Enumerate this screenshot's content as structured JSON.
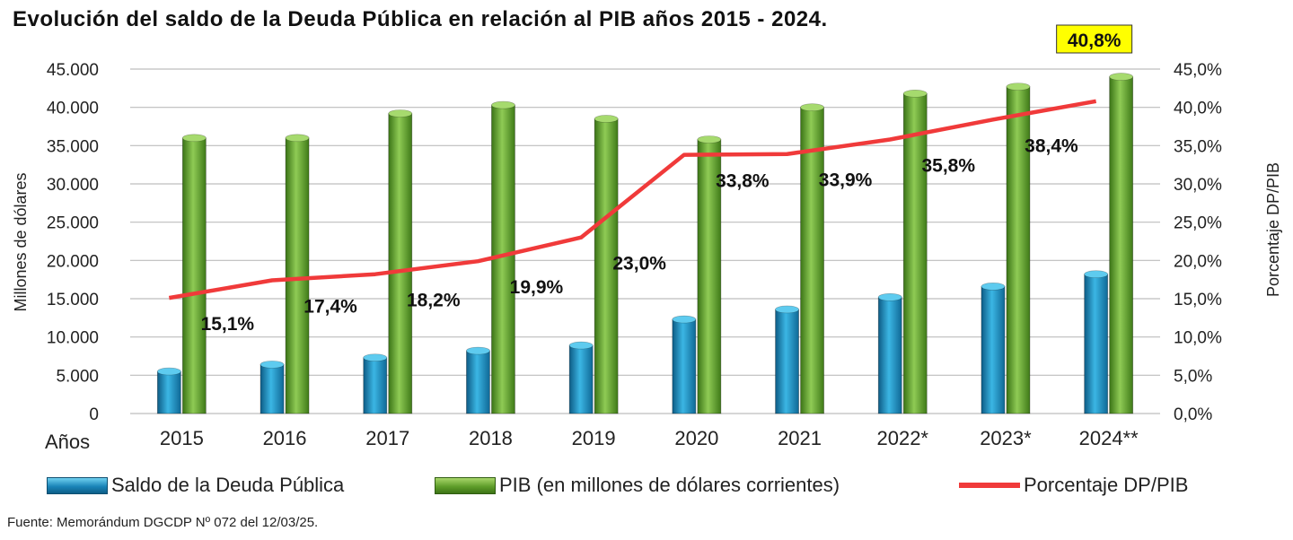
{
  "title": "Evolución del saldo de la Deuda Pública en relación al PIB años 2015 - 2024.",
  "source": "Fuente: Memorándum DGCDP Nº 072 del 12/03/25.",
  "chart_data": {
    "type": "bar",
    "title": "Evolución del saldo de la Deuda Pública en relación al PIB años 2015 - 2024.",
    "categories": [
      "2015",
      "2016",
      "2017",
      "2018",
      "2019",
      "2020",
      "2021",
      "2022*",
      "2023*",
      "2024**"
    ],
    "xlabel": "Años",
    "ylabel": "Millones de dólares",
    "y2label": "Porcentaje DP/PIB",
    "ylim": [
      0,
      45000
    ],
    "y2lim": [
      0,
      45
    ],
    "yticks": [
      "0",
      "5.000",
      "10.000",
      "15.000",
      "20.000",
      "25.000",
      "30.000",
      "35.000",
      "40.000",
      "45.000"
    ],
    "y2ticks": [
      "0,0%",
      "5,0%",
      "10,0%",
      "15,0%",
      "20,0%",
      "25,0%",
      "30,0%",
      "35,0%",
      "40,0%",
      "45,0%"
    ],
    "grid": true,
    "legend_position": "bottom",
    "series": [
      {
        "name": "Saldo de la Deuda Pública",
        "type": "bar",
        "axis": "left",
        "color": "#1a84b8",
        "values": [
          5500,
          6400,
          7300,
          8200,
          8900,
          12300,
          13600,
          15200,
          16600,
          18200
        ]
      },
      {
        "name": "PIB (en millones de dólares corrientes)",
        "type": "bar",
        "axis": "left",
        "color": "#5f9e2a",
        "values": [
          36000,
          36000,
          39200,
          40300,
          38500,
          35800,
          40000,
          41800,
          42700,
          44000
        ]
      },
      {
        "name": "Porcentaje DP/PIB",
        "type": "line",
        "axis": "right",
        "color": "#f03a3a",
        "values": [
          15.1,
          17.4,
          18.2,
          19.9,
          23.0,
          33.8,
          33.9,
          35.8,
          38.4,
          40.8
        ],
        "labels": [
          "15,1%",
          "17,4%",
          "18,2%",
          "19,9%",
          "23,0%",
          "33,8%",
          "33,9%",
          "35,8%",
          "38,4%",
          "40,8%"
        ],
        "highlight_last_label_color": "#ffff00"
      }
    ]
  }
}
